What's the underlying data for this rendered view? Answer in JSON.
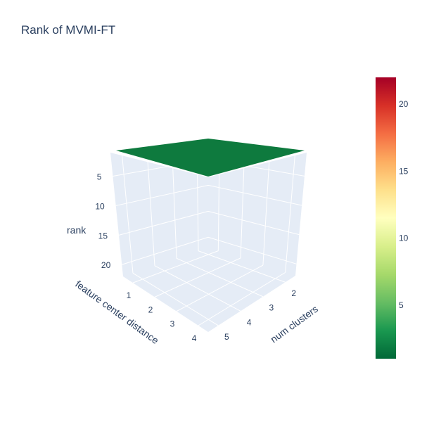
{
  "chart_data": {
    "type": "surface",
    "title": "Rank of MVMI-FT",
    "x_axis": {
      "label": "feature center distance",
      "ticks": [
        1,
        2,
        3,
        4
      ]
    },
    "y_axis": {
      "label": "num clusters",
      "ticks": [
        2,
        3,
        4,
        5
      ]
    },
    "z_axis": {
      "label": "rank",
      "ticks": [
        5,
        10,
        15,
        20
      ],
      "reversed": true
    },
    "x": [
      1,
      2,
      3,
      4
    ],
    "y": [
      2,
      3,
      4,
      5
    ],
    "z": [
      [
        1,
        1,
        1,
        1
      ],
      [
        1,
        1,
        1,
        1
      ],
      [
        1,
        1,
        1,
        1
      ],
      [
        1,
        1,
        1,
        1
      ]
    ],
    "colorscale": "RdYlGn reversed",
    "colorbar": {
      "ticks": [
        5,
        10,
        15,
        20
      ],
      "range": [
        1,
        22
      ]
    },
    "colors": {
      "low": "#006837",
      "mid": "#ffffbf",
      "high": "#a50026",
      "surface": "#0e7a3e",
      "pane": "#e5ecf6",
      "grid": "#ffffff",
      "text": "#2a3f5f"
    }
  }
}
